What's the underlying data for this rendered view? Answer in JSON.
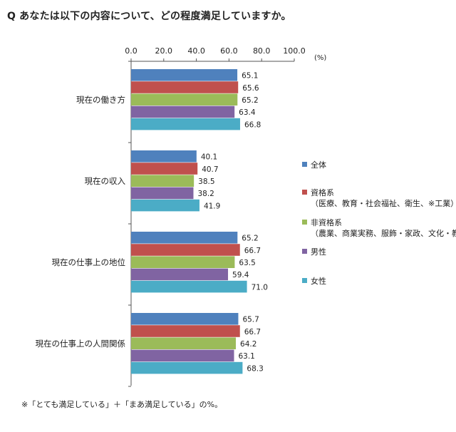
{
  "title": "Q あなたは以下の内容について、どの程度満足していますか。",
  "footnote": "※「とても満足している」＋「まあ満足している」の%。",
  "chart_data": {
    "type": "bar",
    "orientation": "horizontal",
    "unit": "(%)",
    "xlim": [
      0,
      100
    ],
    "ticks": [
      "0.0",
      "20.0",
      "40.0",
      "60.0",
      "80.0",
      "100.0"
    ],
    "categories": [
      "現在の働き方",
      "現在の収入",
      "現在の仕事上の地位",
      "現在の仕事上の人間関係"
    ],
    "series": [
      {
        "name": "全体",
        "sub": "",
        "color": "#4f81bd",
        "values": [
          65.1,
          40.1,
          65.2,
          65.7
        ]
      },
      {
        "name": "資格系",
        "sub": "（医療、教育・社会福祉、衛生、※工業）",
        "color": "#c0504d",
        "values": [
          65.6,
          40.7,
          66.7,
          66.7
        ]
      },
      {
        "name": "非資格系",
        "sub": "（農業、商業実務、服飾・家政、文化・教養）",
        "color": "#9bbb59",
        "values": [
          65.2,
          38.5,
          63.5,
          64.2
        ]
      },
      {
        "name": "男性",
        "sub": "",
        "color": "#8064a2",
        "values": [
          63.4,
          38.2,
          59.4,
          63.1
        ]
      },
      {
        "name": "女性",
        "sub": "",
        "color": "#4bacc6",
        "values": [
          66.8,
          41.9,
          71.0,
          68.3
        ]
      }
    ],
    "grid": false,
    "legend_position": "right"
  }
}
